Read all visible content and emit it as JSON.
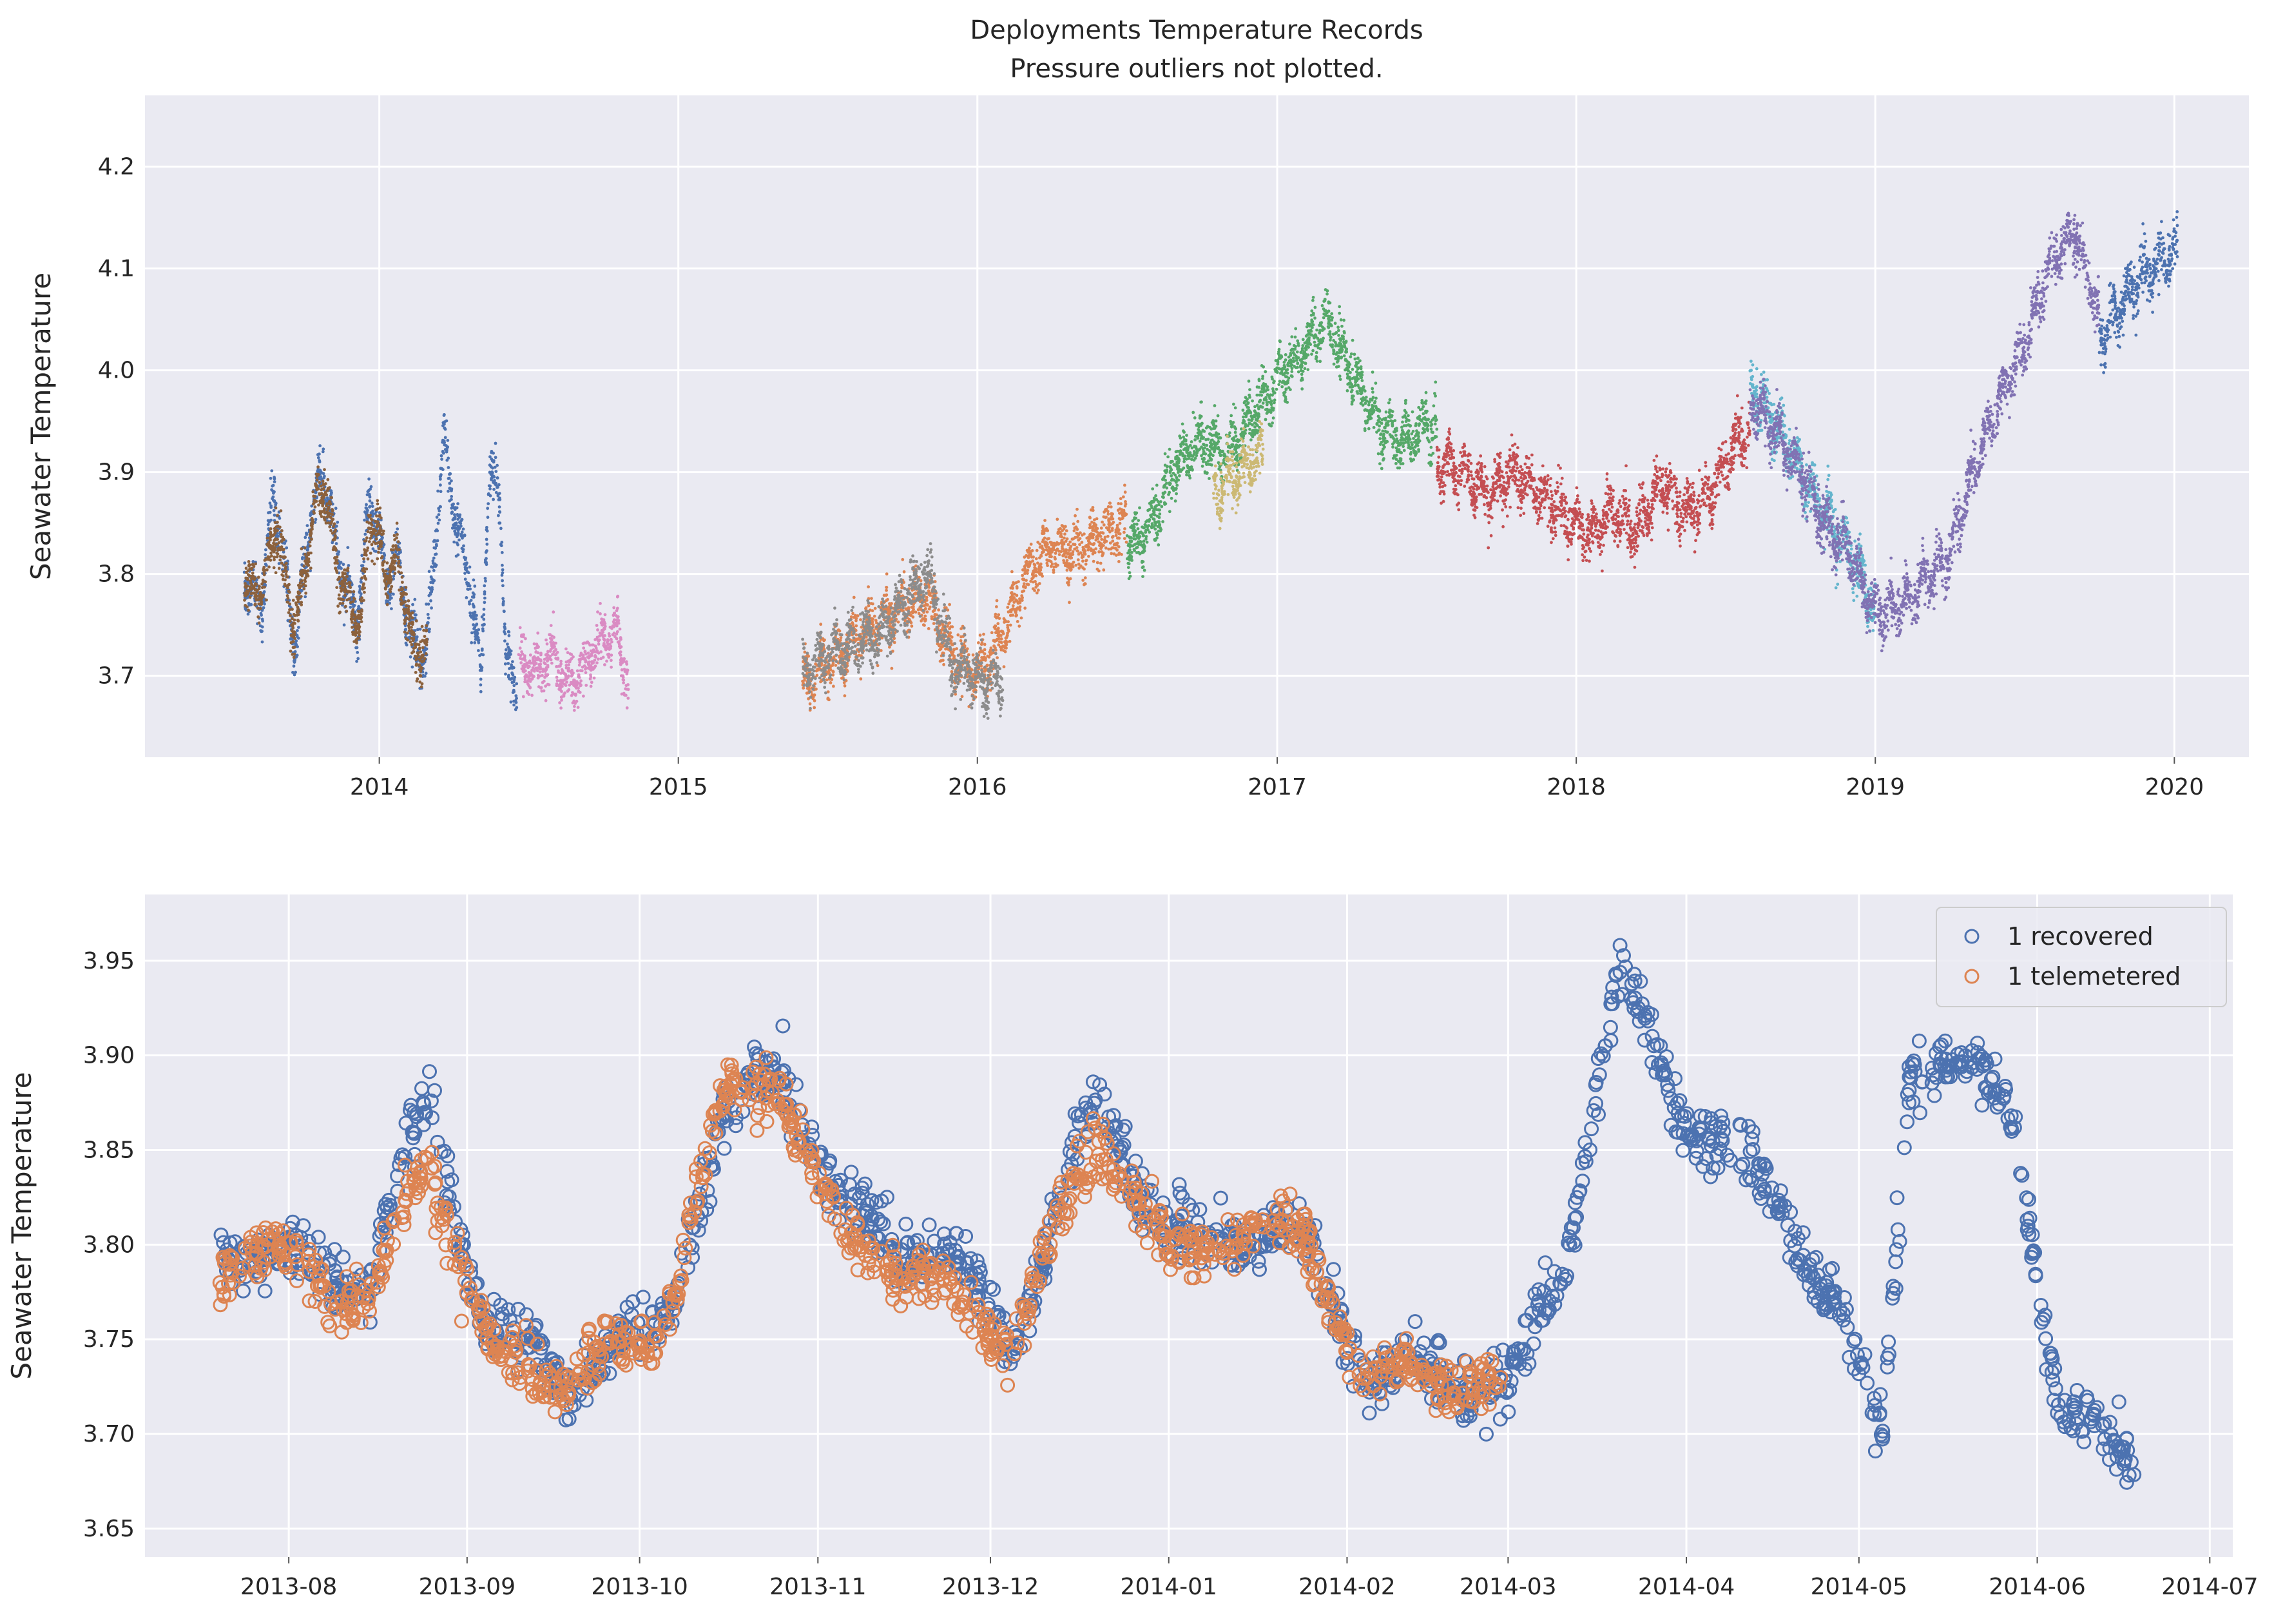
{
  "figure": {
    "title": "Deployments Temperature Records",
    "subtitle": "Pressure outliers not plotted."
  },
  "chart_data": [
    {
      "type": "scatter",
      "ylabel": "Seawater Temperature",
      "xlabel": "",
      "xlim": [
        "2013-03-21",
        "2020-04-01"
      ],
      "ylim": [
        3.62,
        4.27
      ],
      "x_ticks": [
        "2014",
        "2015",
        "2016",
        "2017",
        "2018",
        "2019",
        "2020"
      ],
      "y_ticks": [
        "3.7",
        "3.8",
        "3.9",
        "4.0",
        "4.1",
        "4.2"
      ],
      "grid": true,
      "background": "#eaeaf2",
      "series": [
        {
          "color": "#4c72b0",
          "points": [
            [
              "2013-07-20",
              3.8
            ],
            [
              "2013-08-10",
              3.77
            ],
            [
              "2013-08-25",
              3.88
            ],
            [
              "2013-09-20",
              3.73
            ],
            [
              "2013-10-10",
              3.86
            ],
            [
              "2013-10-25",
              3.9
            ],
            [
              "2013-11-15",
              3.8
            ],
            [
              "2013-12-05",
              3.75
            ],
            [
              "2013-12-20",
              3.88
            ],
            [
              "2014-01-10",
              3.8
            ],
            [
              "2014-01-25",
              3.81
            ],
            [
              "2014-02-10",
              3.73
            ],
            [
              "2014-02-25",
              3.72
            ],
            [
              "2014-03-05",
              3.77
            ],
            [
              "2014-03-20",
              3.93
            ],
            [
              "2014-04-05",
              3.85
            ],
            [
              "2014-04-20",
              3.8
            ],
            [
              "2014-05-05",
              3.7
            ],
            [
              "2014-05-15",
              3.9
            ],
            [
              "2014-05-28",
              3.88
            ],
            [
              "2014-06-05",
              3.71
            ],
            [
              "2014-06-18",
              3.69
            ]
          ]
        },
        {
          "color": "#8c613c",
          "points": [
            [
              "2013-07-20",
              3.79
            ],
            [
              "2013-08-10",
              3.78
            ],
            [
              "2013-08-28",
              3.85
            ],
            [
              "2013-09-20",
              3.74
            ],
            [
              "2013-10-15",
              3.87
            ],
            [
              "2013-10-25",
              3.89
            ],
            [
              "2013-11-15",
              3.79
            ],
            [
              "2013-12-10",
              3.75
            ],
            [
              "2013-12-20",
              3.86
            ],
            [
              "2014-01-10",
              3.8
            ],
            [
              "2014-01-25",
              3.81
            ],
            [
              "2014-02-10",
              3.73
            ],
            [
              "2014-02-28",
              3.72
            ]
          ]
        },
        {
          "color": "#da8bc3",
          "points": [
            [
              "2014-06-20",
              3.72
            ],
            [
              "2014-07-10",
              3.7
            ],
            [
              "2014-08-01",
              3.72
            ],
            [
              "2014-08-20",
              3.69
            ],
            [
              "2014-09-10",
              3.71
            ],
            [
              "2014-10-01",
              3.74
            ],
            [
              "2014-10-20",
              3.74
            ],
            [
              "2014-11-01",
              3.69
            ]
          ]
        },
        {
          "color": "#dd8452",
          "points": [
            [
              "2015-06-01",
              3.69
            ],
            [
              "2015-07-01",
              3.71
            ],
            [
              "2015-08-01",
              3.73
            ],
            [
              "2015-09-01",
              3.75
            ],
            [
              "2015-10-01",
              3.77
            ],
            [
              "2015-11-01",
              3.78
            ],
            [
              "2015-12-01",
              3.72
            ],
            [
              "2016-01-01",
              3.7
            ],
            [
              "2016-02-01",
              3.74
            ],
            [
              "2016-03-01",
              3.8
            ],
            [
              "2016-04-01",
              3.83
            ],
            [
              "2016-05-01",
              3.82
            ],
            [
              "2016-06-01",
              3.84
            ],
            [
              "2016-07-01",
              3.85
            ]
          ]
        },
        {
          "color": "#8c8c8c",
          "points": [
            [
              "2015-06-01",
              3.7
            ],
            [
              "2015-07-01",
              3.72
            ],
            [
              "2015-08-01",
              3.73
            ],
            [
              "2015-09-01",
              3.74
            ],
            [
              "2015-10-01",
              3.77
            ],
            [
              "2015-11-01",
              3.8
            ],
            [
              "2015-12-01",
              3.71
            ],
            [
              "2016-01-01",
              3.7
            ],
            [
              "2016-02-01",
              3.69
            ]
          ]
        },
        {
          "color": "#55a868",
          "points": [
            [
              "2016-07-01",
              3.82
            ],
            [
              "2016-08-01",
              3.85
            ],
            [
              "2016-09-01",
              3.91
            ],
            [
              "2016-10-01",
              3.93
            ],
            [
              "2016-11-01",
              3.92
            ],
            [
              "2016-12-01",
              3.95
            ],
            [
              "2017-01-01",
              3.99
            ],
            [
              "2017-02-01",
              4.02
            ],
            [
              "2017-03-01",
              4.05
            ],
            [
              "2017-04-01",
              4.0
            ],
            [
              "2017-05-01",
              3.95
            ],
            [
              "2017-06-01",
              3.93
            ],
            [
              "2017-07-15",
              3.95
            ]
          ]
        },
        {
          "color": "#ccb974",
          "points": [
            [
              "2016-10-15",
              3.88
            ],
            [
              "2016-11-15",
              3.9
            ],
            [
              "2016-12-15",
              3.92
            ]
          ]
        },
        {
          "color": "#c44e52",
          "points": [
            [
              "2017-07-15",
              3.91
            ],
            [
              "2017-08-15",
              3.9
            ],
            [
              "2017-09-15",
              3.88
            ],
            [
              "2017-10-15",
              3.9
            ],
            [
              "2017-11-15",
              3.88
            ],
            [
              "2017-12-15",
              3.86
            ],
            [
              "2018-01-15",
              3.84
            ],
            [
              "2018-02-15",
              3.86
            ],
            [
              "2018-03-15",
              3.84
            ],
            [
              "2018-04-15",
              3.89
            ],
            [
              "2018-05-15",
              3.86
            ],
            [
              "2018-06-15",
              3.88
            ],
            [
              "2018-07-15",
              3.93
            ],
            [
              "2018-08-01",
              3.94
            ]
          ]
        },
        {
          "color": "#64b5cd",
          "points": [
            [
              "2018-08-01",
              3.98
            ],
            [
              "2018-08-20",
              3.96
            ],
            [
              "2018-09-15",
              3.93
            ],
            [
              "2018-10-15",
              3.88
            ],
            [
              "2018-11-15",
              3.84
            ],
            [
              "2018-12-15",
              3.8
            ],
            [
              "2019-01-01",
              3.76
            ]
          ]
        },
        {
          "color": "#8172b3",
          "points": [
            [
              "2018-08-01",
              3.97
            ],
            [
              "2018-09-01",
              3.94
            ],
            [
              "2018-10-01",
              3.9
            ],
            [
              "2018-11-01",
              3.85
            ],
            [
              "2018-12-01",
              3.82
            ],
            [
              "2019-01-01",
              3.76
            ],
            [
              "2019-02-01",
              3.77
            ],
            [
              "2019-03-01",
              3.79
            ],
            [
              "2019-04-01",
              3.82
            ],
            [
              "2019-05-01",
              3.9
            ],
            [
              "2019-06-01",
              3.97
            ],
            [
              "2019-07-01",
              4.02
            ],
            [
              "2019-08-01",
              4.1
            ],
            [
              "2019-09-01",
              4.14
            ],
            [
              "2019-10-01",
              4.05
            ]
          ]
        },
        {
          "color": "#4c72b0",
          "points": [
            [
              "2019-10-01",
              4.03
            ],
            [
              "2019-11-01",
              4.07
            ],
            [
              "2019-12-01",
              4.1
            ],
            [
              "2020-01-05",
              4.12
            ]
          ]
        }
      ]
    },
    {
      "type": "scatter",
      "ylabel": "Seawater Temperature",
      "xlabel": "",
      "xlim": [
        "2013-07-07",
        "2014-07-05"
      ],
      "ylim": [
        3.635,
        3.985
      ],
      "x_ticks": [
        "2013-08",
        "2013-09",
        "2013-10",
        "2013-11",
        "2013-12",
        "2014-01",
        "2014-02",
        "2014-03",
        "2014-04",
        "2014-05",
        "2014-06",
        "2014-07"
      ],
      "y_ticks": [
        "3.65",
        "3.70",
        "3.75",
        "3.80",
        "3.85",
        "3.90",
        "3.95"
      ],
      "grid": true,
      "background": "#eaeaf2",
      "legend_position": "top-right",
      "series": [
        {
          "name": "1 recovered",
          "color": "#4c72b0",
          "points": [
            [
              "2013-07-20",
              3.8
            ],
            [
              "2013-08-05",
              3.79
            ],
            [
              "2013-08-15",
              3.78
            ],
            [
              "2013-08-25",
              3.88
            ],
            [
              "2013-09-05",
              3.75
            ],
            [
              "2013-09-20",
              3.73
            ],
            [
              "2013-10-05",
              3.76
            ],
            [
              "2013-10-15",
              3.86
            ],
            [
              "2013-10-25",
              3.9
            ],
            [
              "2013-11-05",
              3.82
            ],
            [
              "2013-11-15",
              3.8
            ],
            [
              "2013-11-25",
              3.79
            ],
            [
              "2013-12-05",
              3.75
            ],
            [
              "2013-12-20",
              3.88
            ],
            [
              "2014-01-01",
              3.8
            ],
            [
              "2014-01-15",
              3.81
            ],
            [
              "2014-01-25",
              3.8
            ],
            [
              "2014-02-05",
              3.73
            ],
            [
              "2014-02-20",
              3.73
            ],
            [
              "2014-03-01",
              3.72
            ],
            [
              "2014-03-10",
              3.78
            ],
            [
              "2014-03-20",
              3.94
            ],
            [
              "2014-04-01",
              3.87
            ],
            [
              "2014-04-15",
              3.83
            ],
            [
              "2014-04-25",
              3.78
            ],
            [
              "2014-05-05",
              3.7
            ],
            [
              "2014-05-10",
              3.9
            ],
            [
              "2014-05-20",
              3.89
            ],
            [
              "2014-05-28",
              3.87
            ],
            [
              "2014-06-05",
              3.71
            ],
            [
              "2014-06-18",
              3.69
            ]
          ]
        },
        {
          "name": "1 telemetered",
          "color": "#dd8452",
          "points": [
            [
              "2013-07-20",
              3.79
            ],
            [
              "2013-08-05",
              3.79
            ],
            [
              "2013-08-15",
              3.76
            ],
            [
              "2013-08-25",
              3.85
            ],
            [
              "2013-09-05",
              3.74
            ],
            [
              "2013-09-20",
              3.73
            ],
            [
              "2013-10-05",
              3.76
            ],
            [
              "2013-10-15",
              3.87
            ],
            [
              "2013-10-25",
              3.89
            ],
            [
              "2013-11-05",
              3.8
            ],
            [
              "2013-11-15",
              3.79
            ],
            [
              "2013-11-25",
              3.77
            ],
            [
              "2013-12-05",
              3.75
            ],
            [
              "2013-12-20",
              3.86
            ],
            [
              "2014-01-01",
              3.79
            ],
            [
              "2014-01-15",
              3.81
            ],
            [
              "2014-01-25",
              3.8
            ],
            [
              "2014-02-05",
              3.73
            ],
            [
              "2014-02-20",
              3.73
            ],
            [
              "2014-02-28",
              3.72
            ]
          ]
        }
      ]
    }
  ]
}
